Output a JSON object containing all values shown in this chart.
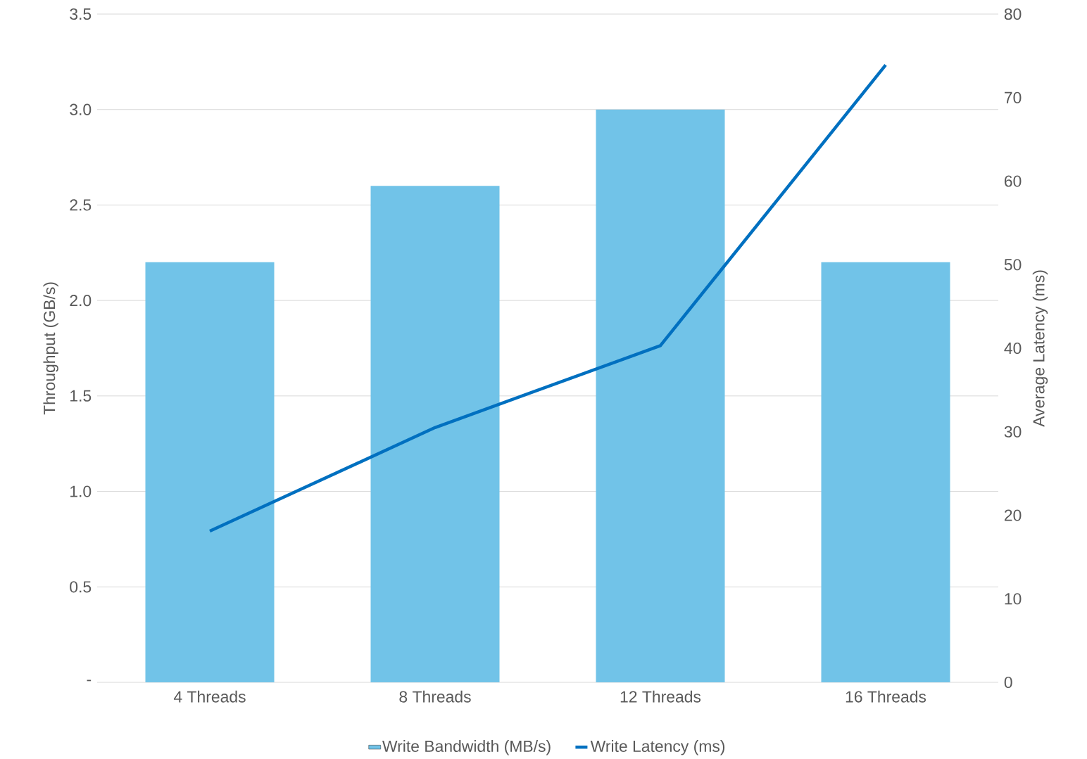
{
  "chart_data": {
    "type": "bar",
    "categories": [
      "4 Threads",
      "8 Threads",
      "12 Threads",
      "16 Threads"
    ],
    "series": [
      {
        "name": "Write Bandwidth (MB/s)",
        "color": "#71c3e8",
        "values": [
          2.2,
          2.6,
          3.0,
          2.2
        ]
      },
      {
        "name": "Write Latency (ms)",
        "type": "line",
        "axis": "y2",
        "color": "#0070c0",
        "values": [
          18.1,
          30.5,
          40.3,
          73.9
        ]
      }
    ],
    "ylabel": "Throughput (GB/s)",
    "y2label": "Average Latency (ms)",
    "ylim": [
      0,
      3.5
    ],
    "yticks": [
      {
        "value": 0,
        "label": "-"
      },
      {
        "value": 0.5,
        "label": "0.5"
      },
      {
        "value": 1.0,
        "label": "1.0"
      },
      {
        "value": 1.5,
        "label": "1.5"
      },
      {
        "value": 2.0,
        "label": "2.0"
      },
      {
        "value": 2.5,
        "label": "2.5"
      },
      {
        "value": 3.0,
        "label": "3.0"
      },
      {
        "value": 3.5,
        "label": "3.5"
      }
    ],
    "y2lim": [
      0,
      80
    ],
    "y2ticks": [
      0,
      10,
      20,
      30,
      40,
      50,
      60,
      70,
      80
    ],
    "grid": "y",
    "legend": "bottom"
  }
}
